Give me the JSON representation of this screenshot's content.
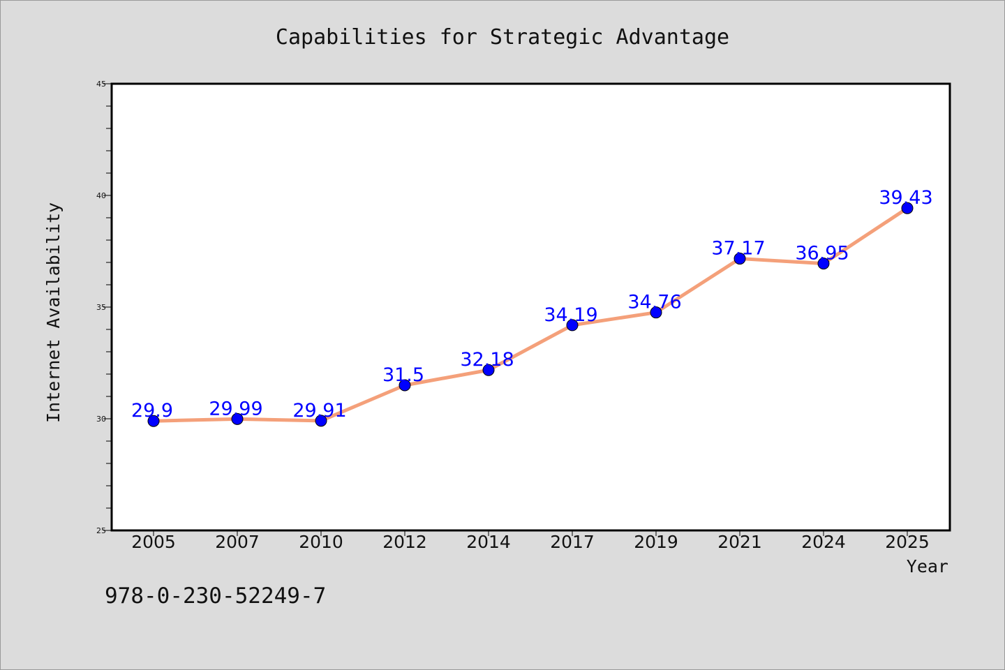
{
  "chart_data": {
    "type": "line",
    "title": "Capabilities for Strategic Advantage",
    "xlabel": "Year",
    "ylabel": "Internet Availability",
    "categories": [
      "2005",
      "2007",
      "2010",
      "2012",
      "2014",
      "2017",
      "2019",
      "2021",
      "2024",
      "2025"
    ],
    "series": [
      {
        "values": [
          29.9,
          29.99,
          29.91,
          31.5,
          32.18,
          34.19,
          34.76,
          37.17,
          36.95,
          39.43
        ],
        "labels": [
          "29.9",
          "29.99",
          "29.91",
          "31.5",
          "32.18",
          "34.19",
          "34.76",
          "37.17",
          "36.95",
          "39.43"
        ],
        "line_color": "#f4a07a",
        "marker_color": "#0000ff",
        "label_color": "#0000ff"
      }
    ],
    "ylim": [
      25,
      45
    ],
    "yticks": [
      "25",
      "30",
      "35",
      "40",
      "45"
    ],
    "grid": false,
    "legend": "none"
  },
  "annotation": "978-0-230-52249-7"
}
